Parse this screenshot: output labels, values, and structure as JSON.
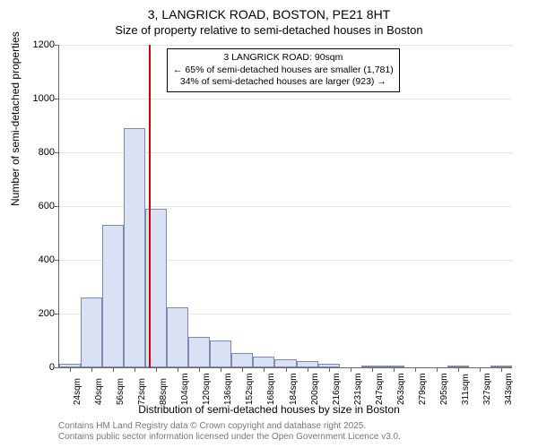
{
  "title": "3, LANGRICK ROAD, BOSTON, PE21 8HT",
  "subtitle": "Size of property relative to semi-detached houses in Boston",
  "y_axis_label": "Number of semi-detached properties",
  "x_axis_label": "Distribution of semi-detached houses by size in Boston",
  "footer_line1": "Contains HM Land Registry data © Crown copyright and database right 2025.",
  "footer_line2": "Contains public sector information licensed under the Open Government Licence v3.0.",
  "chart": {
    "type": "histogram",
    "ylim": [
      0,
      1200
    ],
    "ytick_step": 200,
    "bar_fill": "#d9e1f2",
    "bar_border": "#7a8ab0",
    "grid_color": "#e6e6e6",
    "background_color": "#ffffff",
    "ref_line_color": "#cc0000",
    "ref_line_x_index": 4.15,
    "categories": [
      "24sqm",
      "40sqm",
      "56sqm",
      "72sqm",
      "88sqm",
      "104sqm",
      "120sqm",
      "136sqm",
      "152sqm",
      "168sqm",
      "184sqm",
      "200sqm",
      "216sqm",
      "231sqm",
      "247sqm",
      "263sqm",
      "279sqm",
      "295sqm",
      "311sqm",
      "327sqm",
      "343sqm"
    ],
    "values": [
      15,
      260,
      530,
      890,
      590,
      225,
      115,
      100,
      55,
      40,
      30,
      25,
      12,
      0,
      8,
      6,
      0,
      0,
      3,
      0,
      3
    ],
    "title_fontsize": 14,
    "label_fontsize": 12,
    "tick_fontsize": 11
  },
  "annotation": {
    "line1": "3 LANGRICK ROAD: 90sqm",
    "line2": "← 65% of semi-detached houses are smaller (1,781)",
    "line3": "34% of semi-detached houses are larger (923) →"
  }
}
